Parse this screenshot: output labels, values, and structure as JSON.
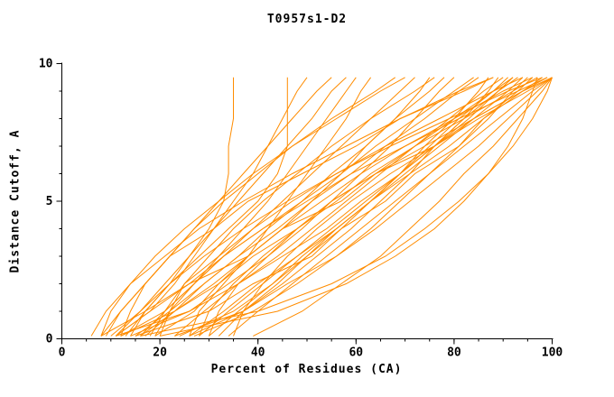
{
  "chart_data": {
    "type": "line",
    "title": "T0957s1-D2",
    "xlabel": "Percent of Residues (CA)",
    "ylabel": "Distance Cutoff, A",
    "xlim": [
      0,
      100
    ],
    "ylim": [
      0,
      10
    ],
    "x_ticks": [
      0,
      20,
      40,
      60,
      80,
      100
    ],
    "y_ticks": [
      0,
      5,
      10
    ],
    "x_minor_step": 5,
    "y_minor_step": 1,
    "grid": false,
    "legend": null,
    "curve_color": "#ff8c00",
    "axis_color": "#000000",
    "y_levels": [
      0.1,
      1,
      2,
      3,
      4,
      5,
      6,
      7,
      8,
      9,
      9.5
    ],
    "curves": [
      [
        8,
        17,
        26,
        38,
        45,
        57,
        64,
        76,
        85,
        95,
        100
      ],
      [
        15,
        30,
        39,
        51,
        57,
        66,
        72,
        81,
        86,
        93,
        96
      ],
      [
        9,
        12,
        17,
        22,
        31,
        38,
        49,
        60,
        69,
        82,
        88
      ],
      [
        16,
        23,
        32,
        39,
        48,
        55,
        64,
        72,
        80,
        88,
        92
      ],
      [
        23,
        37,
        46,
        56,
        64,
        71,
        78,
        85,
        91,
        97,
        100
      ],
      [
        8,
        10,
        14,
        19,
        25,
        32,
        39,
        47,
        56,
        65,
        70
      ],
      [
        26,
        33,
        40,
        48,
        56,
        63,
        71,
        79,
        86,
        94,
        98
      ],
      [
        14,
        26,
        34,
        42,
        49,
        55,
        61,
        67,
        72,
        77,
        80
      ],
      [
        18,
        21,
        25,
        32,
        39,
        47,
        56,
        66,
        77,
        88,
        94
      ],
      [
        23,
        29,
        36,
        44,
        51,
        58,
        65,
        72,
        79,
        86,
        90
      ],
      [
        12,
        21,
        27,
        32,
        37,
        42,
        46,
        50,
        54,
        58,
        60
      ],
      [
        28,
        30,
        35,
        41,
        48,
        55,
        64,
        74,
        84,
        94,
        100
      ],
      [
        15,
        22,
        29,
        36,
        44,
        51,
        59,
        66,
        74,
        81,
        85
      ],
      [
        12,
        23,
        31,
        38,
        45,
        51,
        57,
        62,
        68,
        73,
        75
      ],
      [
        30,
        32,
        36,
        42,
        48,
        56,
        63,
        72,
        82,
        92,
        97
      ],
      [
        13,
        17,
        22,
        26,
        30,
        33,
        34,
        34,
        35,
        35,
        35
      ],
      [
        10,
        16,
        22,
        28,
        34,
        40,
        44,
        46,
        46,
        46,
        46
      ],
      [
        17,
        23,
        29,
        36,
        42,
        49,
        55,
        62,
        68,
        75,
        78
      ],
      [
        27,
        39,
        48,
        56,
        63,
        69,
        75,
        81,
        87,
        92,
        95
      ],
      [
        8,
        12,
        17,
        22,
        27,
        32,
        37,
        42,
        47,
        52,
        55
      ],
      [
        19,
        22,
        27,
        33,
        41,
        50,
        59,
        70,
        81,
        93,
        99
      ],
      [
        28,
        34,
        41,
        48,
        55,
        62,
        69,
        76,
        83,
        89,
        93
      ],
      [
        12,
        14,
        17,
        22,
        27,
        33,
        40,
        47,
        55,
        64,
        68
      ],
      [
        24,
        35,
        43,
        50,
        57,
        63,
        69,
        74,
        80,
        85,
        87
      ],
      [
        11,
        26,
        36,
        45,
        54,
        61,
        69,
        76,
        82,
        89,
        92
      ],
      [
        34,
        40,
        47,
        54,
        61,
        68,
        75,
        82,
        89,
        96,
        100
      ],
      [
        16,
        21,
        27,
        33,
        39,
        45,
        51,
        57,
        63,
        69,
        72
      ],
      [
        26,
        28,
        33,
        38,
        45,
        53,
        61,
        70,
        80,
        90,
        96
      ],
      [
        11,
        18,
        26,
        33,
        41,
        49,
        57,
        64,
        72,
        80,
        84
      ],
      [
        26,
        37,
        45,
        52,
        59,
        65,
        71,
        76,
        82,
        87,
        89
      ],
      [
        30,
        36,
        43,
        49,
        56,
        63,
        70,
        77,
        84,
        91,
        94
      ],
      [
        19,
        27,
        32,
        38,
        42,
        46,
        50,
        54,
        58,
        61,
        63
      ],
      [
        35,
        37,
        41,
        46,
        52,
        59,
        67,
        76,
        84,
        94,
        99
      ],
      [
        11,
        16,
        21,
        26,
        31,
        36,
        41,
        46,
        51,
        55,
        58
      ],
      [
        20,
        22,
        25,
        30,
        35,
        41,
        48,
        55,
        63,
        72,
        76
      ],
      [
        32,
        37,
        44,
        50,
        56,
        63,
        69,
        75,
        81,
        88,
        91
      ],
      [
        14,
        17,
        22,
        29,
        37,
        46,
        56,
        67,
        79,
        91,
        98
      ],
      [
        11,
        18,
        23,
        27,
        31,
        35,
        39,
        42,
        45,
        48,
        50
      ],
      [
        39,
        49,
        57,
        65,
        71,
        77,
        82,
        88,
        93,
        98,
        100
      ],
      [
        6,
        9,
        14,
        21,
        28,
        37,
        47,
        58,
        69,
        81,
        88
      ],
      [
        20,
        44,
        58,
        68,
        76,
        82,
        87,
        91,
        94,
        96,
        97
      ],
      [
        16,
        40,
        55,
        66,
        74,
        81,
        87,
        92,
        96,
        99,
        100
      ]
    ]
  }
}
